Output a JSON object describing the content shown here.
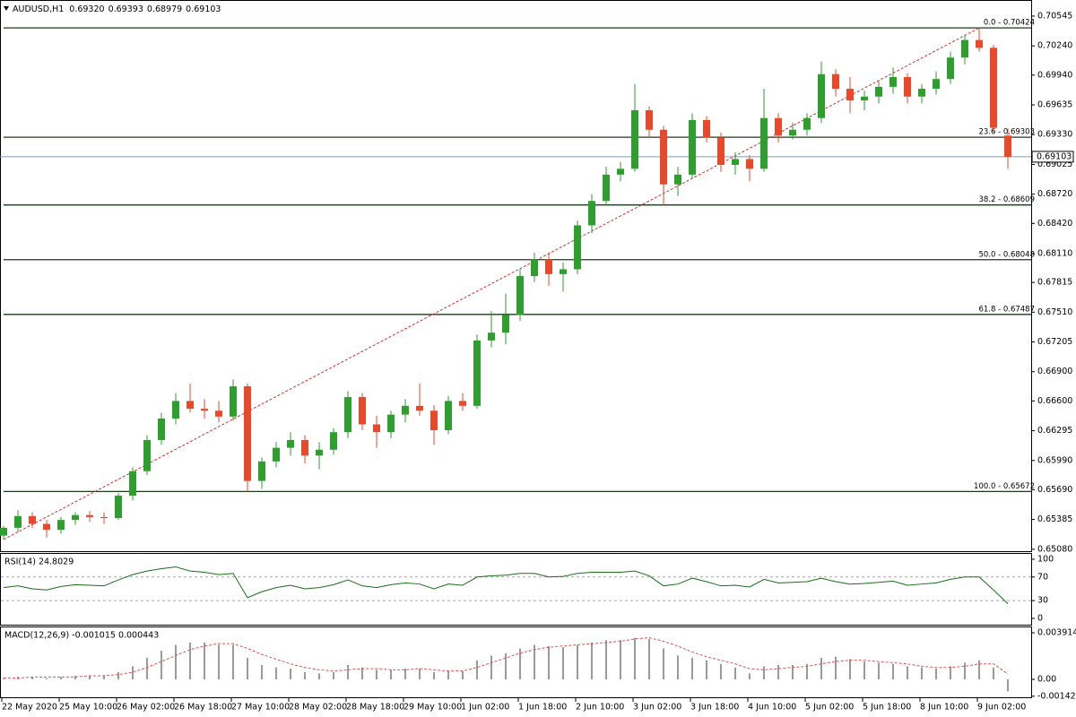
{
  "chart_data": [
    {
      "type": "candlestick",
      "header": {
        "symbol": "AUDUSD,H1",
        "values": [
          {
            "value": 0.6932,
            "label": "0.69320"
          },
          {
            "value": 0.69393,
            "label": "0.69393"
          },
          {
            "value": 0.68979,
            "label": "0.68979"
          },
          {
            "value": 0.69103,
            "label": "0.69103"
          }
        ]
      },
      "categories": [
        "22 May 2020",
        null,
        null,
        null,
        "25 May 10:00",
        null,
        null,
        null,
        "26 May 02:00",
        null,
        null,
        null,
        "26 May 18:00",
        null,
        null,
        null,
        "27 May 10:00",
        null,
        null,
        null,
        "28 May 02:00",
        null,
        null,
        null,
        "28 May 18:00",
        null,
        null,
        null,
        "29 May 10:00",
        null,
        null,
        null,
        "1 Jun 02:00",
        null,
        null,
        null,
        "1 Jun 18:00",
        null,
        null,
        null,
        "2 Jun 10:00",
        null,
        null,
        null,
        "3 Jun 02:00",
        null,
        null,
        null,
        "3 Jun 18:00",
        null,
        null,
        null,
        "4 Jun 10:00",
        null,
        null,
        null,
        "5 Jun 02:00",
        null,
        null,
        null,
        "5 Jun 18:00",
        null,
        null,
        null,
        "8 Jun 10:00",
        null,
        null,
        null,
        "9 Jun 02:00",
        null,
        null
      ],
      "open": [
        0.6522,
        0.653,
        0.6542,
        0.6534,
        0.6528,
        0.6538,
        0.6543,
        0.6541,
        0.654,
        0.6563,
        0.6588,
        0.662,
        0.6642,
        0.666,
        0.6652,
        0.665,
        0.6644,
        0.6675,
        0.6578,
        0.6598,
        0.6612,
        0.662,
        0.6604,
        0.661,
        0.6628,
        0.6664,
        0.6636,
        0.6628,
        0.6646,
        0.6655,
        0.665,
        0.663,
        0.666,
        0.6655,
        0.6722,
        0.673,
        0.6748,
        0.6788,
        0.6805,
        0.679,
        0.6795,
        0.684,
        0.6865,
        0.6892,
        0.6898,
        0.6958,
        0.6938,
        0.6882,
        0.6892,
        0.6948,
        0.693,
        0.6902,
        0.6908,
        0.6898,
        0.695,
        0.6932,
        0.6938,
        0.695,
        0.6995,
        0.698,
        0.6968,
        0.6972,
        0.6982,
        0.6992,
        0.6972,
        0.698,
        0.699,
        0.7012,
        0.703,
        0.7022,
        0.6932
      ],
      "high": [
        0.6532,
        0.6548,
        0.6546,
        0.6538,
        0.6541,
        0.6546,
        0.6547,
        0.6546,
        0.6566,
        0.6592,
        0.6625,
        0.6648,
        0.6668,
        0.6678,
        0.6662,
        0.666,
        0.6682,
        0.6678,
        0.6602,
        0.6618,
        0.6628,
        0.6625,
        0.6618,
        0.6632,
        0.667,
        0.6668,
        0.6645,
        0.665,
        0.6662,
        0.6678,
        0.6656,
        0.6665,
        0.6668,
        0.6728,
        0.6752,
        0.677,
        0.6795,
        0.6812,
        0.6812,
        0.6802,
        0.6845,
        0.6872,
        0.69,
        0.6905,
        0.6985,
        0.6962,
        0.6942,
        0.69,
        0.6955,
        0.6952,
        0.6935,
        0.6915,
        0.6912,
        0.698,
        0.6955,
        0.6945,
        0.6955,
        0.7008,
        0.7,
        0.6992,
        0.6978,
        0.6988,
        0.7002,
        0.6996,
        0.6985,
        0.6998,
        0.7018,
        0.7035,
        0.70424,
        0.7025,
        0.69393
      ],
      "low": [
        0.6518,
        0.6526,
        0.653,
        0.652,
        0.6524,
        0.6533,
        0.6536,
        0.6534,
        0.6538,
        0.6558,
        0.6584,
        0.6615,
        0.6636,
        0.6648,
        0.6642,
        0.6638,
        0.664,
        0.6567,
        0.657,
        0.6592,
        0.6604,
        0.6596,
        0.659,
        0.6605,
        0.6622,
        0.663,
        0.6612,
        0.6622,
        0.6638,
        0.6645,
        0.6615,
        0.6626,
        0.665,
        0.6652,
        0.6715,
        0.6718,
        0.6742,
        0.6782,
        0.6778,
        0.6772,
        0.679,
        0.6832,
        0.686,
        0.6885,
        0.6895,
        0.693,
        0.686,
        0.687,
        0.6888,
        0.6925,
        0.6895,
        0.6892,
        0.6885,
        0.6895,
        0.6925,
        0.6928,
        0.6932,
        0.6945,
        0.6972,
        0.6955,
        0.6958,
        0.6965,
        0.6975,
        0.6965,
        0.6965,
        0.6974,
        0.6985,
        0.7005,
        0.7018,
        0.6935,
        0.68979
      ],
      "close": [
        0.653,
        0.6542,
        0.6534,
        0.6528,
        0.6538,
        0.6543,
        0.6541,
        0.654,
        0.6563,
        0.6588,
        0.662,
        0.6642,
        0.666,
        0.6652,
        0.665,
        0.6644,
        0.6675,
        0.6578,
        0.6598,
        0.6612,
        0.662,
        0.6604,
        0.661,
        0.6628,
        0.6664,
        0.6636,
        0.6628,
        0.6646,
        0.6655,
        0.665,
        0.663,
        0.666,
        0.6655,
        0.6722,
        0.673,
        0.6748,
        0.6788,
        0.6805,
        0.679,
        0.6795,
        0.684,
        0.6865,
        0.6892,
        0.6898,
        0.6958,
        0.6938,
        0.6882,
        0.6892,
        0.6948,
        0.693,
        0.6902,
        0.6908,
        0.6898,
        0.695,
        0.6932,
        0.6938,
        0.695,
        0.6995,
        0.698,
        0.6968,
        0.6972,
        0.6982,
        0.6992,
        0.6972,
        0.698,
        0.699,
        0.7012,
        0.703,
        0.7022,
        0.694,
        0.69103
      ],
      "up_color": "#2e9e2e",
      "down_color": "#e8492a",
      "ylim": [
        0.6506,
        0.7071
      ],
      "yticks": [
        0.70545,
        {
          "value": 0.7024,
          "label": "0.70240"
        },
        {
          "value": 0.6994,
          "label": "0.69940"
        },
        0.69635,
        {
          "value": 0.6933,
          "label": "0.69330"
        },
        0.69025,
        {
          "value": 0.6872,
          "label": "0.68720"
        },
        {
          "value": 0.6842,
          "label": "0.68420"
        },
        {
          "value": 0.6811,
          "label": "0.68110"
        },
        0.67815,
        {
          "value": 0.6751,
          "label": "0.67510"
        },
        0.67205,
        {
          "value": 0.669,
          "label": "0.66900"
        },
        {
          "value": 0.666,
          "label": "0.66600"
        },
        0.66295,
        {
          "value": 0.6599,
          "label": "0.65990"
        },
        {
          "value": 0.6569,
          "label": "0.65690"
        },
        0.65385,
        {
          "value": 0.6508,
          "label": "0.65080"
        }
      ],
      "fib_levels": [
        {
          "value": 0.70424,
          "label": "0.0 - 0.70424"
        },
        {
          "value": 0.69303,
          "label": "23.6 - 0.69303"
        },
        {
          "value": 0.68609,
          "label": "38.2 - 0.68609"
        },
        {
          "value": 0.68048,
          "label": "50.0 - 0.68048"
        },
        {
          "value": 0.67487,
          "label": "61.8 - 0.67487"
        },
        {
          "value": 0.65672,
          "label": "100.0 - 0.65672"
        }
      ],
      "current_price": {
        "value": 0.69103,
        "label": "0.69103"
      }
    },
    {
      "type": "line",
      "title": "RSI(14) 24.8029",
      "color": "#1a6e1a",
      "values": [
        52,
        55,
        50,
        48,
        54,
        57,
        56,
        55,
        65,
        74,
        80,
        84,
        87,
        80,
        78,
        74,
        76,
        35,
        45,
        52,
        56,
        50,
        52,
        57,
        65,
        55,
        52,
        57,
        60,
        58,
        50,
        58,
        56,
        70,
        72,
        73,
        76,
        76,
        70,
        71,
        76,
        78,
        78,
        78,
        80,
        72,
        55,
        58,
        68,
        62,
        55,
        56,
        53,
        66,
        60,
        61,
        62,
        68,
        62,
        58,
        59,
        61,
        63,
        56,
        58,
        60,
        66,
        70,
        70,
        48,
        24.8029
      ],
      "ylim": [
        -10.6,
        109
      ],
      "yticks": [
        100,
        70,
        30,
        0
      ],
      "levels": [
        70,
        30
      ]
    },
    {
      "type": "macd",
      "title": "MACD(12,26,9) -0.001015 0.000443",
      "color": "#9a9a9a",
      "signal_color": "#e05050",
      "values": [
        0.0001,
        0.0002,
        0.0002,
        0.0001,
        0.0002,
        0.0003,
        0.0003,
        0.0003,
        0.0006,
        0.0011,
        0.0018,
        0.0024,
        0.0029,
        0.0031,
        0.0031,
        0.0029,
        0.0029,
        0.0018,
        0.0012,
        0.001,
        0.0009,
        0.0006,
        0.0005,
        0.0006,
        0.0012,
        0.001,
        0.0008,
        0.0008,
        0.0009,
        0.0009,
        0.0006,
        0.0007,
        0.0007,
        0.0016,
        0.002,
        0.0022,
        0.0026,
        0.0029,
        0.0028,
        0.0027,
        0.0029,
        0.0031,
        0.0033,
        0.0033,
        0.0035,
        0.0034,
        0.0026,
        0.002,
        0.0018,
        0.0016,
        0.0013,
        0.001,
        0.0005,
        0.0011,
        0.0012,
        0.0012,
        0.0013,
        0.0018,
        0.0019,
        0.0017,
        0.0015,
        0.0014,
        0.0013,
        0.0011,
        0.001,
        0.0009,
        0.0011,
        0.0014,
        0.0016,
        0.001,
        -0.001015
      ],
      "signal": [
        0.0001,
        0.0001,
        0.0002,
        0.0002,
        0.0002,
        0.0002,
        0.0003,
        0.0003,
        0.0004,
        0.0006,
        0.001,
        0.0015,
        0.002,
        0.0025,
        0.0028,
        0.003,
        0.003,
        0.0026,
        0.0021,
        0.0017,
        0.0013,
        0.001,
        0.0008,
        0.0007,
        0.0008,
        0.0009,
        0.0009,
        0.0008,
        0.0008,
        0.0009,
        0.0008,
        0.0007,
        0.0007,
        0.001,
        0.0014,
        0.0018,
        0.0022,
        0.0025,
        0.0027,
        0.0028,
        0.0029,
        0.003,
        0.0031,
        0.0032,
        0.0034,
        0.0035,
        0.0032,
        0.0028,
        0.0023,
        0.0019,
        0.0016,
        0.0013,
        0.0009,
        0.0008,
        0.0009,
        0.001,
        0.0011,
        0.0013,
        0.0015,
        0.0016,
        0.0016,
        0.0015,
        0.0014,
        0.0013,
        0.0011,
        0.001,
        0.001,
        0.0011,
        0.0013,
        0.0013,
        0.000443
      ],
      "ylim": [
        -0.00151,
        0.00437
      ],
      "yticks": [
        0.003914,
        {
          "value": 0,
          "label": "0.00"
        },
        -0.001422
      ]
    }
  ]
}
